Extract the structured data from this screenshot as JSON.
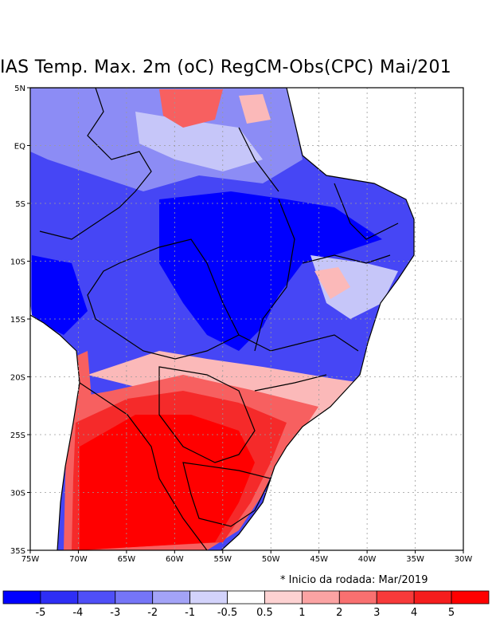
{
  "title": "IAS Temp. Max. 2m (oC) RegCM-Obs(CPC) Mai/201",
  "note": "* Inicio da rodada: Mar/2019",
  "x_ticks": [
    "75W",
    "70W",
    "65W",
    "60W",
    "55W",
    "50W",
    "45W",
    "40W",
    "35W",
    "30W"
  ],
  "y_ticks": [
    "5N",
    "EQ",
    "5S",
    "10S",
    "15S",
    "20S",
    "25S",
    "30S",
    "35S"
  ],
  "colorbar": {
    "labels": [
      "-5",
      "-4",
      "-3",
      "-2",
      "-1",
      "-0.5",
      "0.5",
      "1",
      "2",
      "3",
      "4",
      "5"
    ],
    "colors": [
      "#0000ff",
      "#2e2ef5",
      "#4f4ff7",
      "#7575f7",
      "#a3a3f7",
      "#d3d3fb",
      "#ffffff",
      "#fdd2d2",
      "#fba3a3",
      "#f97070",
      "#f73a3a",
      "#f51d1d",
      "#ff0000"
    ]
  },
  "colors": {
    "deep_blue": "#0000ff",
    "mid_blue": "#4646f5",
    "light_blue": "#8c8cf5",
    "pale_blue": "#c6c6f9",
    "pale_red": "#fbb9b9",
    "mid_red": "#f76060",
    "strong_red": "#f52a2a",
    "deep_red": "#ff0000"
  }
}
